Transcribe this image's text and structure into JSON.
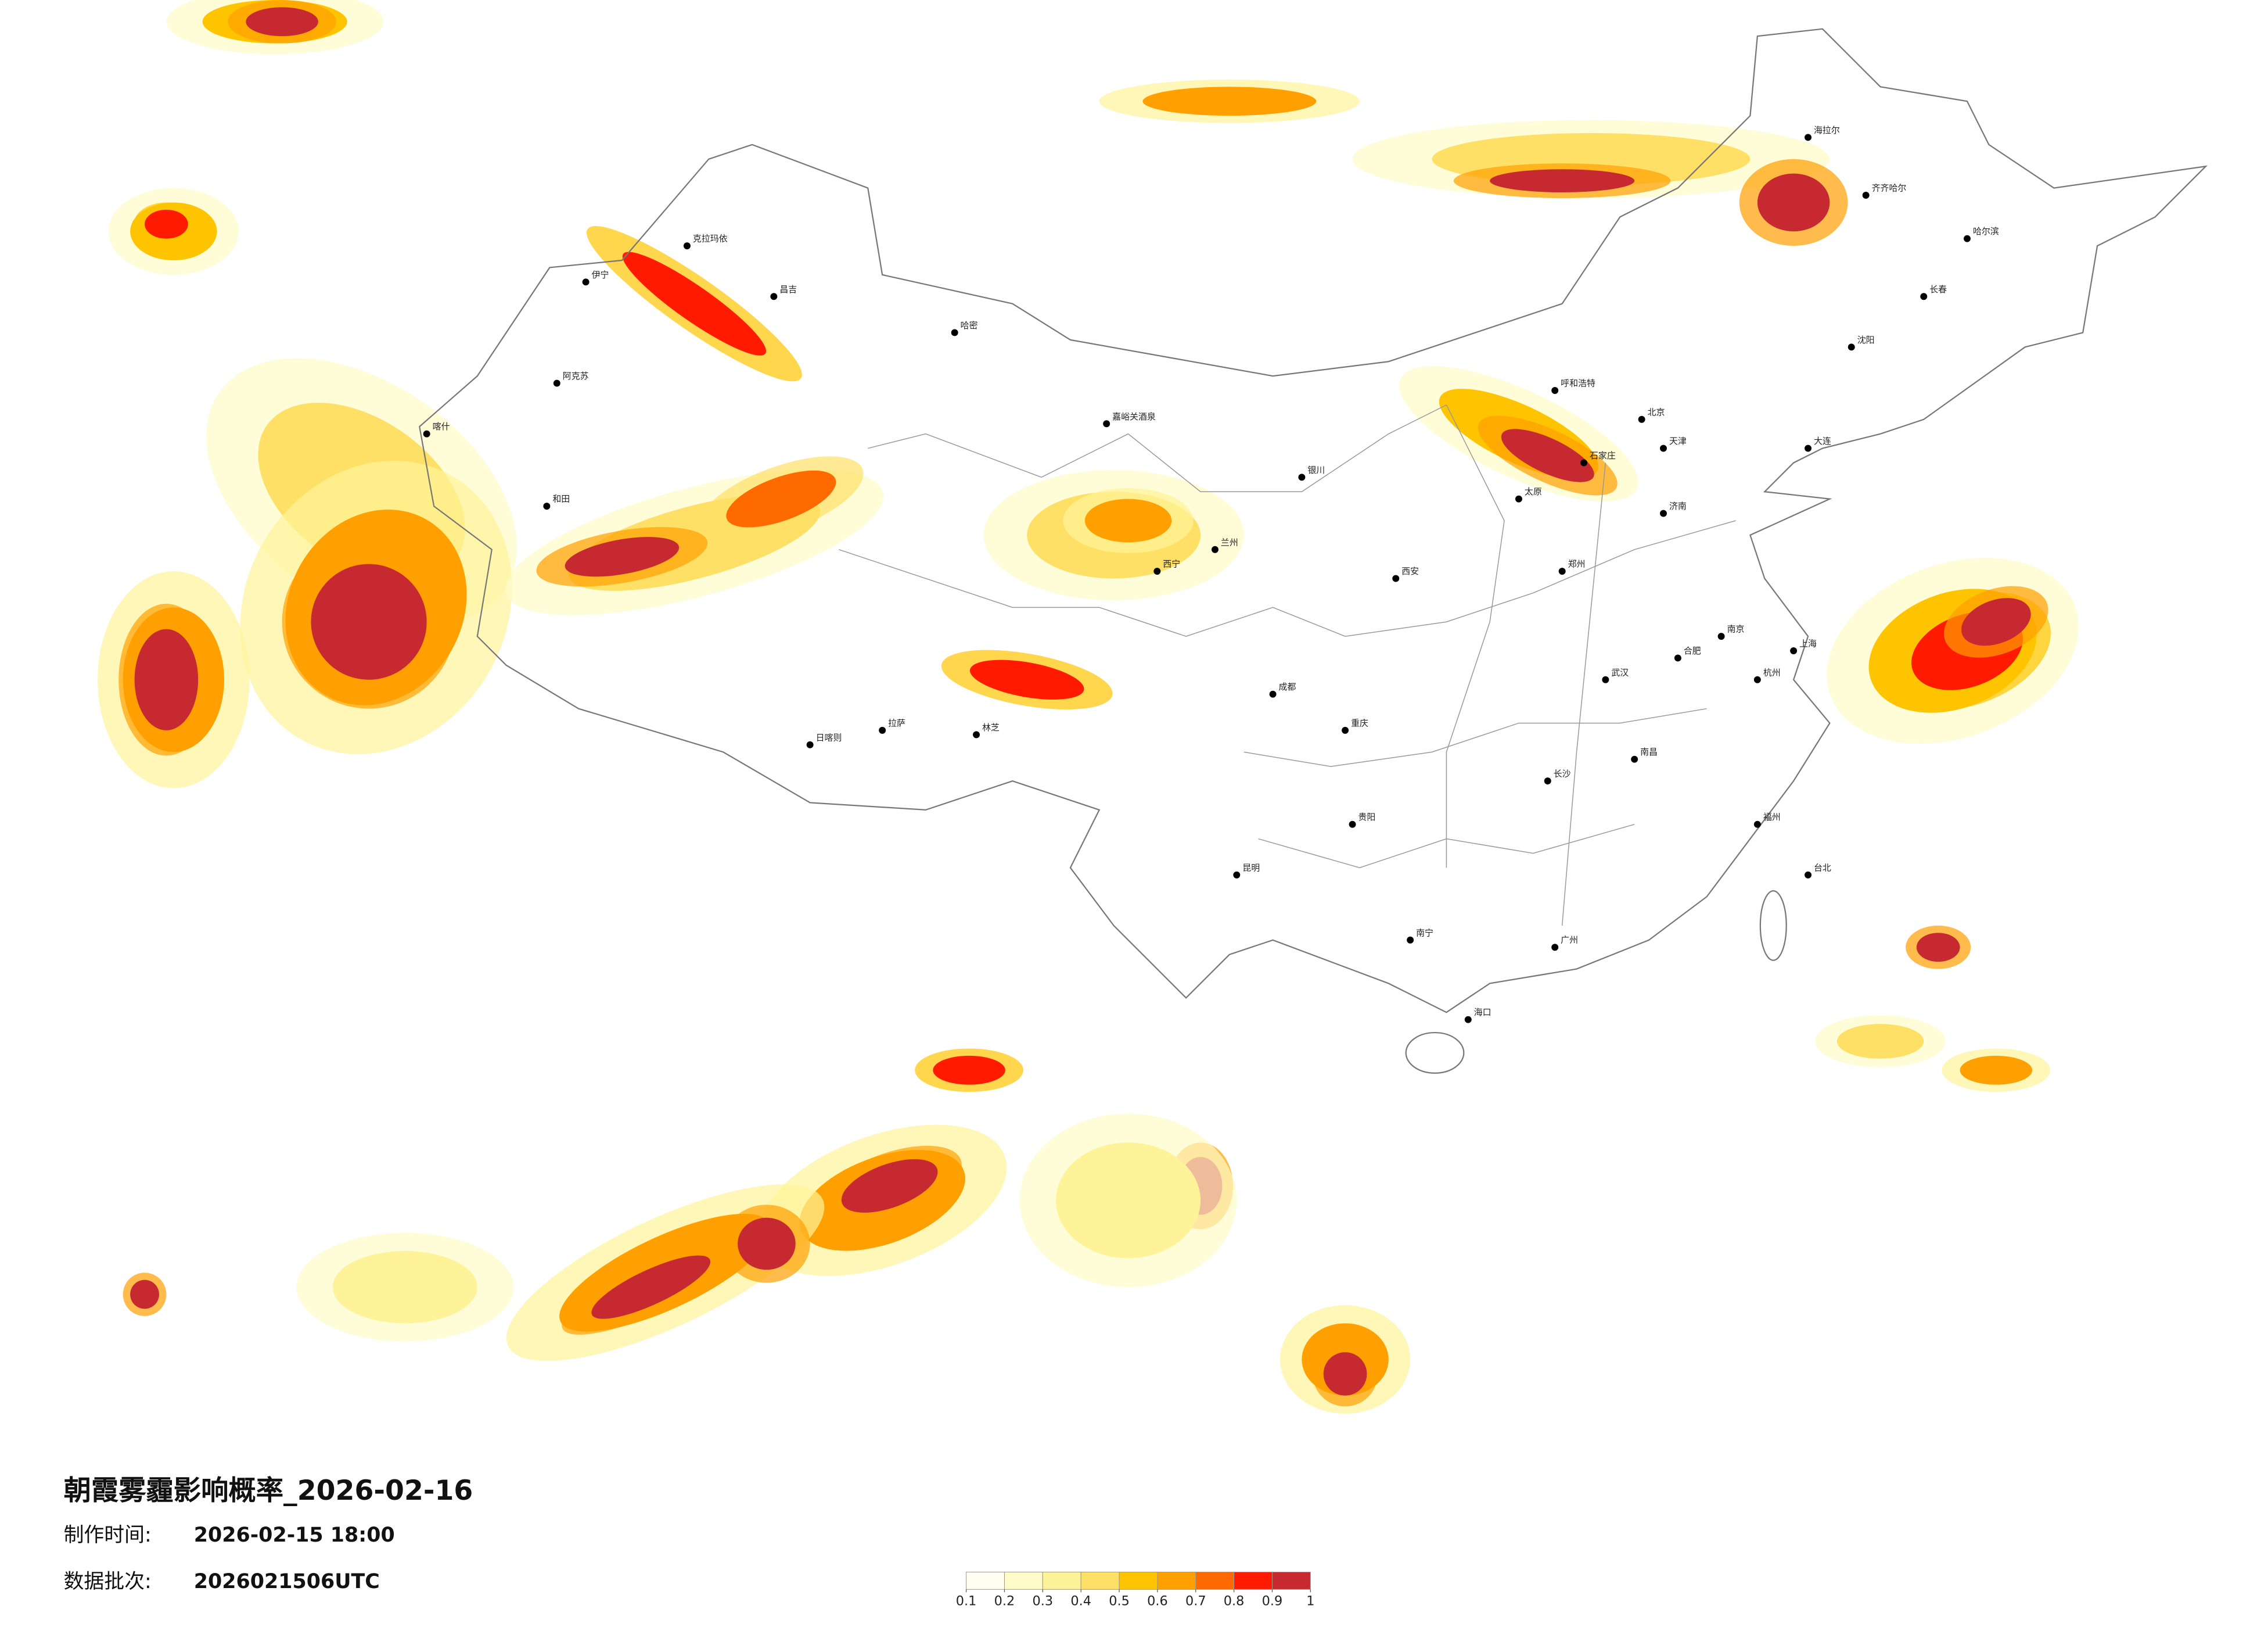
{
  "header": {
    "title": "朝霞雾霾影响概率_2026-02-16",
    "made_label": "制作时间:",
    "made_time": "2026-02-15 18:00",
    "batch_label": "数据批次:",
    "batch": "2026021506UTC"
  },
  "legend": {
    "ticks": [
      0.1,
      0.2,
      0.3,
      0.4,
      0.5,
      0.6,
      0.7,
      0.8,
      0.9,
      1
    ],
    "colors": [
      "#fffef0",
      "#fffbc8",
      "#fff39a",
      "#ffe066",
      "#ffc400",
      "#ffa000",
      "#ff6a00",
      "#ff1a00",
      "#c62a30"
    ]
  },
  "cities": [
    "哈密",
    "和田",
    "阿克苏",
    "喀什",
    "伊宁",
    "昌吉",
    "克拉玛依",
    "日喀则",
    "拉萨",
    "林芝",
    "嘉峪关酒泉",
    "西宁",
    "兰州",
    "银川",
    "呼和浩特",
    "北京",
    "天津",
    "石家庄",
    "太原",
    "济南",
    "郑州",
    "西安",
    "武汉",
    "长沙",
    "南昌",
    "合肥",
    "南京",
    "上海",
    "杭州",
    "福州",
    "广州",
    "南宁",
    "昆明",
    "贵阳",
    "成都",
    "重庆",
    "哈尔滨",
    "长春",
    "沈阳",
    "大连",
    "海口",
    "台北",
    "海拉尔",
    "齐齐哈尔"
  ]
}
